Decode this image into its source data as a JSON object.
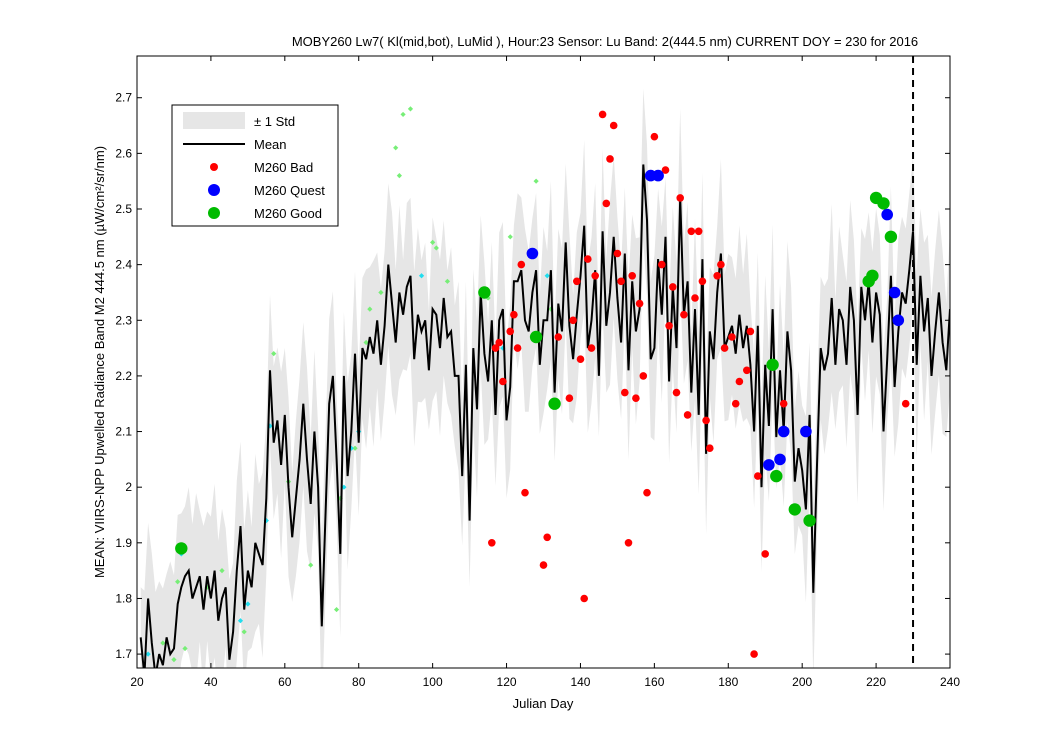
{
  "title": "MOBY260   Lw7( Kl(mid,bot), LuMid ),   Hour:23 Sensor: Lu Band: 2(444.5 nm)   CURRENT DOY = 230 for 2016",
  "chart_data": {
    "type": "line",
    "title": "MOBY260   Lw7( Kl(mid,bot), LuMid ),   Hour:23 Sensor: Lu Band: 2(444.5 nm)   CURRENT DOY = 230 for 2016",
    "xlabel": "Julian Day",
    "ylabel": "MEAN: VIIRS-NPP Upwelled Radiance Band M2 444.5 nm (µW/cm²/sr/nm)",
    "xlim": [
      20,
      240
    ],
    "ylim": [
      1.675,
      2.775
    ],
    "x_ticks": [
      20,
      40,
      60,
      80,
      100,
      120,
      140,
      160,
      180,
      200,
      220,
      240
    ],
    "y_ticks": [
      1.7,
      1.8,
      1.9,
      2.0,
      2.1,
      2.2,
      2.3,
      2.4,
      2.5,
      2.6,
      2.7
    ],
    "x_tick_labels": [
      "20",
      "40",
      "60",
      "80",
      "100",
      "120",
      "140",
      "160",
      "180",
      "200",
      "220",
      "240"
    ],
    "y_tick_labels": [
      "1.7",
      "1.8",
      "1.9",
      "2",
      "2.1",
      "2.2",
      "2.3",
      "2.4",
      "2.5",
      "2.6",
      "2.7"
    ],
    "current_doy": 230,
    "grid": false,
    "legend_position": "top-left",
    "legend": [
      {
        "label": "± 1 Std",
        "kind": "band",
        "color": "#e6e6e6"
      },
      {
        "label": "Mean",
        "kind": "line",
        "color": "#000000"
      },
      {
        "label": "M260 Bad",
        "kind": "marker",
        "color": "#ff0000"
      },
      {
        "label": "M260 Quest",
        "kind": "marker",
        "color": "#0000ff"
      },
      {
        "label": "M260 Good",
        "kind": "marker",
        "color": "#00bb00"
      }
    ],
    "mean": [
      [
        21,
        1.73
      ],
      [
        22,
        1.66
      ],
      [
        23,
        1.8
      ],
      [
        24,
        1.72
      ],
      [
        25,
        1.66
      ],
      [
        26,
        1.7
      ],
      [
        27,
        1.68
      ],
      [
        28,
        1.73
      ],
      [
        29,
        1.7
      ],
      [
        30,
        1.71
      ],
      [
        31,
        1.79
      ],
      [
        32,
        1.82
      ],
      [
        33,
        1.84
      ],
      [
        34,
        1.85
      ],
      [
        35,
        1.8
      ],
      [
        36,
        1.82
      ],
      [
        37,
        1.84
      ],
      [
        38,
        1.78
      ],
      [
        39,
        1.84
      ],
      [
        40,
        1.8
      ],
      [
        41,
        1.85
      ],
      [
        42,
        1.76
      ],
      [
        43,
        1.8
      ],
      [
        44,
        1.82
      ],
      [
        45,
        1.69
      ],
      [
        46,
        1.74
      ],
      [
        47,
        1.85
      ],
      [
        48,
        1.93
      ],
      [
        49,
        1.78
      ],
      [
        50,
        1.85
      ],
      [
        51,
        1.82
      ],
      [
        52,
        1.9
      ],
      [
        53,
        1.88
      ],
      [
        54,
        1.86
      ],
      [
        55,
        1.98
      ],
      [
        56,
        2.21
      ],
      [
        57,
        2.08
      ],
      [
        58,
        2.12
      ],
      [
        59,
        2.04
      ],
      [
        60,
        2.13
      ],
      [
        61,
        2.0
      ],
      [
        62,
        1.91
      ],
      [
        63,
        1.98
      ],
      [
        64,
        2.05
      ],
      [
        65,
        2.15
      ],
      [
        66,
        2.05
      ],
      [
        67,
        1.97
      ],
      [
        68,
        2.1
      ],
      [
        69,
        2.0
      ],
      [
        70,
        1.75
      ],
      [
        71,
        1.95
      ],
      [
        72,
        2.15
      ],
      [
        73,
        2.2
      ],
      [
        74,
        2.05
      ],
      [
        75,
        1.88
      ],
      [
        76,
        2.2
      ],
      [
        77,
        2.02
      ],
      [
        78,
        2.1
      ],
      [
        79,
        2.24
      ],
      [
        80,
        2.08
      ],
      [
        81,
        2.25
      ],
      [
        82,
        2.23
      ],
      [
        83,
        2.27
      ],
      [
        84,
        2.24
      ],
      [
        85,
        2.3
      ],
      [
        86,
        2.22
      ],
      [
        87,
        2.29
      ],
      [
        88,
        2.4
      ],
      [
        89,
        2.33
      ],
      [
        90,
        2.26
      ],
      [
        91,
        2.35
      ],
      [
        92,
        2.31
      ],
      [
        93,
        2.36
      ],
      [
        94,
        2.38
      ],
      [
        95,
        2.23
      ],
      [
        96,
        2.31
      ],
      [
        97,
        2.28
      ],
      [
        98,
        2.3
      ],
      [
        99,
        2.21
      ],
      [
        100,
        2.32
      ],
      [
        101,
        2.31
      ],
      [
        102,
        2.25
      ],
      [
        103,
        2.34
      ],
      [
        104,
        2.27
      ],
      [
        105,
        2.28
      ],
      [
        106,
        2.2
      ],
      [
        107,
        2.2
      ],
      [
        108,
        2.02
      ],
      [
        109,
        2.22
      ],
      [
        110,
        1.94
      ],
      [
        111,
        2.25
      ],
      [
        112,
        2.14
      ],
      [
        113,
        2.35
      ],
      [
        114,
        2.24
      ],
      [
        115,
        2.19
      ],
      [
        116,
        2.3
      ],
      [
        117,
        2.13
      ],
      [
        118,
        2.3
      ],
      [
        119,
        2.32
      ],
      [
        120,
        2.12
      ],
      [
        121,
        2.18
      ],
      [
        122,
        2.37
      ],
      [
        123,
        2.37
      ],
      [
        124,
        2.39
      ],
      [
        125,
        2.3
      ],
      [
        126,
        2.28
      ],
      [
        127,
        2.35
      ],
      [
        128,
        2.39
      ],
      [
        129,
        2.22
      ],
      [
        130,
        2.3
      ],
      [
        131,
        2.3
      ],
      [
        132,
        2.39
      ],
      [
        133,
        2.17
      ],
      [
        134,
        2.33
      ],
      [
        135,
        2.28
      ],
      [
        136,
        2.44
      ],
      [
        137,
        2.29
      ],
      [
        138,
        2.23
      ],
      [
        139,
        2.31
      ],
      [
        140,
        2.38
      ],
      [
        141,
        2.47
      ],
      [
        142,
        2.25
      ],
      [
        143,
        2.3
      ],
      [
        144,
        2.39
      ],
      [
        145,
        2.2
      ],
      [
        146,
        2.46
      ],
      [
        147,
        2.29
      ],
      [
        148,
        2.35
      ],
      [
        149,
        2.45
      ],
      [
        150,
        2.34
      ],
      [
        151,
        2.26
      ],
      [
        152,
        2.42
      ],
      [
        153,
        2.21
      ],
      [
        154,
        2.37
      ],
      [
        155,
        2.28
      ],
      [
        156,
        2.32
      ],
      [
        157,
        2.58
      ],
      [
        158,
        2.48
      ],
      [
        159,
        2.23
      ],
      [
        160,
        2.25
      ],
      [
        161,
        2.41
      ],
      [
        162,
        2.31
      ],
      [
        163,
        2.45
      ],
      [
        164,
        2.19
      ],
      [
        165,
        2.36
      ],
      [
        166,
        2.25
      ],
      [
        167,
        2.52
      ],
      [
        168,
        2.31
      ],
      [
        169,
        2.37
      ],
      [
        170,
        2.17
      ],
      [
        171,
        2.32
      ],
      [
        172,
        2.13
      ],
      [
        173,
        2.41
      ],
      [
        174,
        2.06
      ],
      [
        175,
        2.28
      ],
      [
        176,
        2.23
      ],
      [
        177,
        2.35
      ],
      [
        178,
        2.42
      ],
      [
        179,
        2.25
      ],
      [
        180,
        2.27
      ],
      [
        181,
        2.29
      ],
      [
        182,
        2.24
      ],
      [
        183,
        2.31
      ],
      [
        184,
        2.25
      ],
      [
        185,
        2.29
      ],
      [
        186,
        2.22
      ],
      [
        187,
        2.1
      ],
      [
        188,
        2.29
      ],
      [
        189,
        2.0
      ],
      [
        190,
        2.22
      ],
      [
        191,
        2.11
      ],
      [
        192,
        2.32
      ],
      [
        193,
        2.09
      ],
      [
        194,
        2.21
      ],
      [
        195,
        2.1
      ],
      [
        196,
        2.28
      ],
      [
        197,
        2.21
      ],
      [
        198,
        2.01
      ],
      [
        199,
        2.07
      ],
      [
        200,
        2.03
      ],
      [
        201,
        1.96
      ],
      [
        202,
        2.13
      ],
      [
        203,
        1.81
      ],
      [
        204,
        2.04
      ],
      [
        205,
        2.25
      ],
      [
        206,
        2.21
      ],
      [
        207,
        2.24
      ],
      [
        208,
        2.34
      ],
      [
        209,
        2.22
      ],
      [
        210,
        2.32
      ],
      [
        211,
        2.3
      ],
      [
        212,
        2.22
      ],
      [
        213,
        2.36
      ],
      [
        214,
        2.3
      ],
      [
        215,
        2.13
      ],
      [
        216,
        2.36
      ],
      [
        217,
        2.3
      ],
      [
        218,
        2.37
      ],
      [
        219,
        2.26
      ],
      [
        220,
        2.35
      ],
      [
        221,
        2.31
      ],
      [
        222,
        2.1
      ],
      [
        223,
        2.23
      ],
      [
        224,
        2.38
      ],
      [
        225,
        2.18
      ],
      [
        226,
        2.28
      ],
      [
        227,
        2.35
      ],
      [
        228,
        2.33
      ],
      [
        229,
        2.39
      ],
      [
        230,
        2.46
      ],
      [
        231,
        2.22
      ],
      [
        232,
        2.38
      ],
      [
        233,
        2.28
      ],
      [
        234,
        2.34
      ],
      [
        235,
        2.2
      ],
      [
        236,
        2.28
      ],
      [
        237,
        2.35
      ],
      [
        238,
        2.26
      ],
      [
        239,
        2.21
      ],
      [
        240,
        2.32
      ]
    ],
    "bad": [
      [
        116,
        1.9
      ],
      [
        117,
        2.25
      ],
      [
        118,
        2.26
      ],
      [
        119,
        2.19
      ],
      [
        121,
        2.28
      ],
      [
        122,
        2.31
      ],
      [
        123,
        2.25
      ],
      [
        124,
        2.4
      ],
      [
        125,
        1.99
      ],
      [
        130,
        1.86
      ],
      [
        131,
        1.91
      ],
      [
        134,
        2.27
      ],
      [
        137,
        2.16
      ],
      [
        138,
        2.3
      ],
      [
        139,
        2.37
      ],
      [
        140,
        2.23
      ],
      [
        141,
        1.8
      ],
      [
        142,
        2.41
      ],
      [
        143,
        2.25
      ],
      [
        144,
        2.38
      ],
      [
        146,
        2.67
      ],
      [
        147,
        2.51
      ],
      [
        148,
        2.59
      ],
      [
        149,
        2.65
      ],
      [
        150,
        2.42
      ],
      [
        151,
        2.37
      ],
      [
        152,
        2.17
      ],
      [
        153,
        1.9
      ],
      [
        154,
        2.38
      ],
      [
        155,
        2.16
      ],
      [
        156,
        2.33
      ],
      [
        157,
        2.2
      ],
      [
        158,
        1.99
      ],
      [
        160,
        2.63
      ],
      [
        162,
        2.4
      ],
      [
        163,
        2.57
      ],
      [
        164,
        2.29
      ],
      [
        165,
        2.36
      ],
      [
        166,
        2.17
      ],
      [
        167,
        2.52
      ],
      [
        168,
        2.31
      ],
      [
        169,
        2.13
      ],
      [
        170,
        2.46
      ],
      [
        171,
        2.34
      ],
      [
        172,
        2.46
      ],
      [
        173,
        2.37
      ],
      [
        174,
        2.12
      ],
      [
        175,
        2.07
      ],
      [
        177,
        2.38
      ],
      [
        178,
        2.4
      ],
      [
        179,
        2.25
      ],
      [
        181,
        2.27
      ],
      [
        182,
        2.15
      ],
      [
        183,
        2.19
      ],
      [
        185,
        2.21
      ],
      [
        186,
        2.28
      ],
      [
        187,
        1.7
      ],
      [
        188,
        2.02
      ],
      [
        190,
        1.88
      ],
      [
        195,
        2.15
      ],
      [
        228,
        2.15
      ]
    ],
    "quest": [
      [
        127,
        2.42
      ],
      [
        159,
        2.56
      ],
      [
        161,
        2.56
      ],
      [
        191,
        2.04
      ],
      [
        194,
        2.05
      ],
      [
        195,
        2.1
      ],
      [
        201,
        2.1
      ],
      [
        223,
        2.49
      ],
      [
        225,
        2.35
      ],
      [
        226,
        2.3
      ]
    ],
    "good": [
      [
        32,
        1.89
      ],
      [
        114,
        2.35
      ],
      [
        128,
        2.27
      ],
      [
        133,
        2.15
      ],
      [
        192,
        2.22
      ],
      [
        193,
        2.02
      ],
      [
        198,
        1.96
      ],
      [
        202,
        1.94
      ],
      [
        218,
        2.37
      ],
      [
        219,
        2.38
      ],
      [
        220,
        2.52
      ],
      [
        222,
        2.51
      ],
      [
        224,
        2.45
      ]
    ],
    "historical_light_green": [
      [
        27,
        1.72
      ],
      [
        30,
        1.69
      ],
      [
        31,
        1.83
      ],
      [
        33,
        1.71
      ],
      [
        39,
        1.82
      ],
      [
        43,
        1.85
      ],
      [
        49,
        1.74
      ],
      [
        57,
        2.24
      ],
      [
        61,
        2.01
      ],
      [
        67,
        1.86
      ],
      [
        74,
        1.78
      ],
      [
        75,
        1.98
      ],
      [
        79,
        2.07
      ],
      [
        82,
        2.26
      ],
      [
        83,
        2.32
      ],
      [
        86,
        2.35
      ],
      [
        90,
        2.61
      ],
      [
        91,
        2.56
      ],
      [
        92,
        2.67
      ],
      [
        94,
        2.68
      ],
      [
        100,
        2.44
      ],
      [
        101,
        2.43
      ],
      [
        104,
        2.37
      ],
      [
        115,
        2.34
      ],
      [
        121,
        2.45
      ],
      [
        128,
        2.55
      ],
      [
        132,
        2.32
      ]
    ],
    "historical_cyan": [
      [
        23,
        1.7
      ],
      [
        32,
        1.88
      ],
      [
        48,
        1.76
      ],
      [
        50,
        1.79
      ],
      [
        55,
        1.94
      ],
      [
        56,
        2.11
      ],
      [
        76,
        2.0
      ],
      [
        78,
        2.07
      ],
      [
        80,
        2.1
      ],
      [
        97,
        2.38
      ],
      [
        119,
        2.25
      ],
      [
        131,
        2.38
      ]
    ]
  }
}
